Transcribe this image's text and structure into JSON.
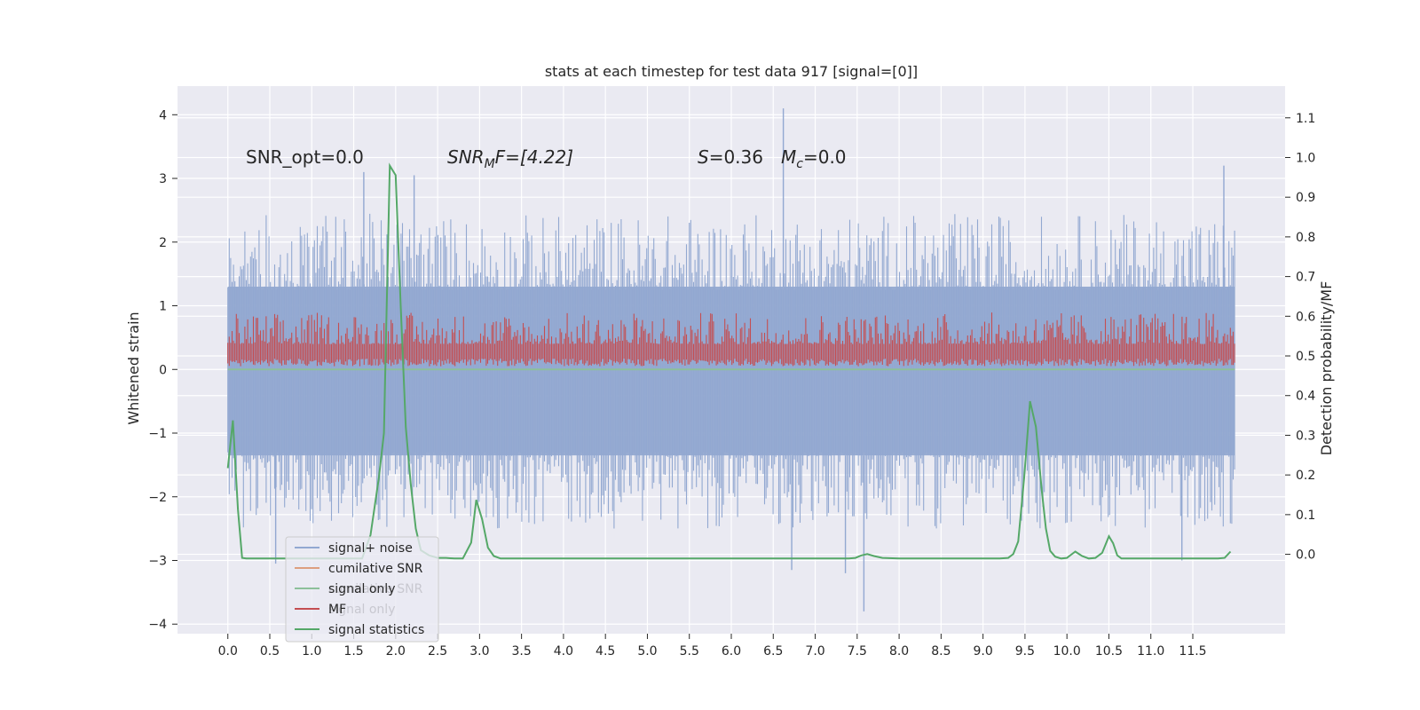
{
  "chart_data": {
    "type": "line",
    "title": "stats at each timestep for test data 917 [signal=[0]]",
    "xlabel": "",
    "ylabel": "Whitened strain",
    "ylabel_right": "Detection probability/MF",
    "xlim": [
      -0.6,
      12.6
    ],
    "ylim": [
      -4.15,
      4.45
    ],
    "ylim_right": [
      -0.2,
      1.18
    ],
    "x_ticks": [
      0.0,
      0.5,
      1.0,
      1.5,
      2.0,
      2.5,
      3.0,
      3.5,
      4.0,
      4.5,
      5.0,
      5.5,
      6.0,
      6.5,
      7.0,
      7.5,
      8.0,
      8.5,
      9.0,
      9.5,
      10.0,
      10.5,
      11.0,
      11.5
    ],
    "x_tick_labels": [
      "0.0",
      "0.5",
      "1.0",
      "1.5",
      "2.0",
      "2.5",
      "3.0",
      "3.5",
      "4.0",
      "4.5",
      "5.0",
      "5.5",
      "6.0",
      "6.5",
      "7.0",
      "7.5",
      "8.0",
      "8.5",
      "9.0",
      "9.5",
      "10.0",
      "10.5",
      "11.0",
      "11.5"
    ],
    "y_ticks": [
      4,
      3,
      2,
      1,
      0,
      -1,
      -2,
      -3,
      -4
    ],
    "y_tick_labels": [
      "4",
      "3",
      "2",
      "1",
      "0",
      "−1",
      "−2",
      "−3",
      "−4"
    ],
    "y_ticks_right": [
      1.1,
      1.0,
      0.9,
      0.8,
      0.7,
      0.6,
      0.5,
      0.4,
      0.3,
      0.2,
      0.1,
      0.0
    ],
    "y_tick_labels_right": [
      "1.1",
      "1.0",
      "0.9",
      "0.8",
      "0.7",
      "0.6",
      "0.5",
      "0.4",
      "0.3",
      "0.2",
      "0.1",
      "0.0"
    ],
    "grid": true,
    "legend_position": "lower-left",
    "annotations": {
      "snr_opt": "SNR_opt=0.0",
      "snr_mf_main": "SNR",
      "snr_mf_sub": "M",
      "snr_mf_rest": "F=[4.22]",
      "s_var": "S",
      "s_rest": "=0.36",
      "mc_var": "M",
      "mc_sub": "c",
      "mc_rest": "=0.0"
    },
    "legend": [
      {
        "label": "signal+ noise",
        "color": "#92a8d1"
      },
      {
        "label": "cumilative SNR",
        "color": "#dd9f7f"
      },
      {
        "label": "signal only",
        "color": "#8dc09a"
      },
      {
        "label": "MF",
        "color": "#c44e52"
      },
      {
        "label": "signal statistics",
        "color": "#55a868"
      }
    ],
    "legend_ghost_labels": [
      "cumilative SNR",
      "signal only"
    ],
    "series": [
      {
        "name": "signal+ noise",
        "axis": "left",
        "style": "dense-noise",
        "x_range": [
          0.0,
          12.0
        ],
        "typical_upper": 1.3,
        "typical_lower": -1.35,
        "peaks": [
          {
            "x": 1.62,
            "y": 3.1
          },
          {
            "x": 2.22,
            "y": 3.05
          },
          {
            "x": 6.62,
            "y": 4.1
          },
          {
            "x": 11.87,
            "y": 3.2
          },
          {
            "x": 0.57,
            "y": -3.05
          },
          {
            "x": 6.72,
            "y": -3.15
          },
          {
            "x": 7.36,
            "y": -3.2
          },
          {
            "x": 7.58,
            "y": -3.8
          },
          {
            "x": 11.37,
            "y": -3.0
          }
        ]
      },
      {
        "name": "MF",
        "axis": "left",
        "style": "dense-noise",
        "x_range": [
          0.0,
          12.0
        ],
        "typical_upper": 0.55,
        "typical_lower": 0.05
      },
      {
        "name": "signal statistics",
        "axis": "left",
        "x": [
          0.0,
          0.06,
          0.12,
          0.17,
          0.22,
          0.3,
          0.4,
          0.5,
          0.6,
          0.7,
          0.8,
          0.9,
          1.0,
          1.1,
          1.2,
          1.3,
          1.4,
          1.5,
          1.6,
          1.7,
          1.8,
          1.86,
          1.93,
          2.0,
          2.06,
          2.12,
          2.18,
          2.24,
          2.3,
          2.4,
          2.5,
          2.6,
          2.7,
          2.8,
          2.9,
          2.96,
          3.03,
          3.1,
          3.17,
          3.25,
          3.35,
          3.5,
          4.0,
          5.0,
          6.0,
          6.5,
          7.0,
          7.4,
          7.48,
          7.55,
          7.62,
          7.7,
          7.8,
          8.0,
          8.5,
          9.0,
          9.2,
          9.3,
          9.36,
          9.42,
          9.49,
          9.56,
          9.63,
          9.7,
          9.75,
          9.8,
          9.86,
          9.93,
          10.0,
          10.05,
          10.1,
          10.18,
          10.26,
          10.34,
          10.42,
          10.5,
          10.55,
          10.6,
          10.65,
          10.7,
          10.8,
          10.9,
          11.0,
          11.2,
          11.4,
          11.6,
          11.7,
          11.8,
          11.88,
          11.95
        ],
        "y": [
          -1.55,
          -0.8,
          -2.2,
          -2.96,
          -2.97,
          -2.97,
          -2.97,
          -2.97,
          -2.97,
          -2.97,
          -2.97,
          -2.97,
          -2.97,
          -2.97,
          -2.97,
          -2.97,
          -2.97,
          -2.97,
          -2.97,
          -2.6,
          -1.7,
          -1.0,
          3.2,
          3.05,
          1.0,
          -0.9,
          -1.8,
          -2.5,
          -2.84,
          -2.92,
          -2.96,
          -2.96,
          -2.97,
          -2.97,
          -2.72,
          -2.05,
          -2.35,
          -2.8,
          -2.93,
          -2.97,
          -2.97,
          -2.97,
          -2.97,
          -2.97,
          -2.97,
          -2.97,
          -2.97,
          -2.97,
          -2.96,
          -2.92,
          -2.9,
          -2.93,
          -2.96,
          -2.97,
          -2.97,
          -2.97,
          -2.97,
          -2.96,
          -2.9,
          -2.7,
          -1.7,
          -0.5,
          -0.9,
          -1.9,
          -2.5,
          -2.85,
          -2.94,
          -2.97,
          -2.96,
          -2.91,
          -2.86,
          -2.93,
          -2.97,
          -2.96,
          -2.88,
          -2.62,
          -2.73,
          -2.92,
          -2.97,
          -2.97,
          -2.97,
          -2.97,
          -2.97,
          -2.97,
          -2.97,
          -2.97,
          -2.97,
          -2.97,
          -2.96,
          -2.86
        ]
      }
    ]
  }
}
